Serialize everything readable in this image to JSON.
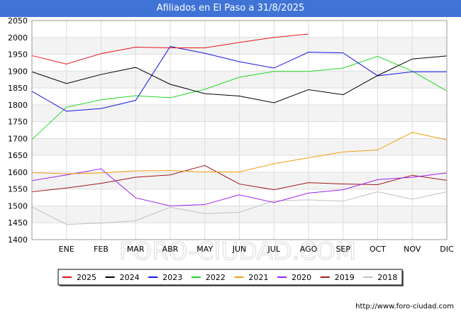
{
  "title": "Afiliados en El Paso a 31/8/2025",
  "source": "http://www.foro-ciudad.com",
  "watermark": "FORO-CIUDAD.COM",
  "chart_data": {
    "type": "line",
    "title": "Afiliados en El Paso a 31/8/2025",
    "xlabel": "",
    "ylabel": "",
    "categories": [
      "",
      "ENE",
      "FEB",
      "MAR",
      "ABR",
      "MAY",
      "JUN",
      "JUL",
      "AGO",
      "SEP",
      "OCT",
      "NOV",
      "DIC"
    ],
    "ylim": [
      1400,
      2050
    ],
    "yticks": [
      1400,
      1450,
      1500,
      1550,
      1600,
      1650,
      1700,
      1750,
      1800,
      1850,
      1900,
      1950,
      2000,
      2050
    ],
    "grid": true,
    "legend_position": "bottom",
    "series": [
      {
        "name": "2025",
        "color": "#e8141a",
        "values": [
          1946,
          1921,
          1952,
          1971,
          1969,
          1969,
          1985,
          2000,
          2010,
          null,
          null,
          null,
          null
        ]
      },
      {
        "name": "2024",
        "color": "#000000",
        "values": [
          1898,
          1863,
          1890,
          1911,
          1861,
          1833,
          1826,
          1806,
          1845,
          1830,
          1887,
          1936,
          1945
        ]
      },
      {
        "name": "2023",
        "color": "#1414e6",
        "values": [
          1840,
          1781,
          1789,
          1813,
          1973,
          1953,
          1928,
          1909,
          1956,
          1954,
          1886,
          1898,
          1898
        ]
      },
      {
        "name": "2022",
        "color": "#22d822",
        "values": [
          1697,
          1793,
          1815,
          1827,
          1821,
          1846,
          1882,
          1899,
          1899,
          1909,
          1944,
          1900,
          1841
        ]
      },
      {
        "name": "2021",
        "color": "#f0a010",
        "values": [
          1599,
          1595,
          1598,
          1604,
          1605,
          1601,
          1601,
          1625,
          1643,
          1660,
          1666,
          1718,
          1696
        ]
      },
      {
        "name": "2020",
        "color": "#a020f0",
        "values": [
          1575,
          1592,
          1610,
          1524,
          1500,
          1504,
          1533,
          1510,
          1538,
          1548,
          1578,
          1585,
          1598
        ]
      },
      {
        "name": "2019",
        "color": "#a01818",
        "values": [
          1542,
          1553,
          1567,
          1585,
          1592,
          1620,
          1565,
          1548,
          1569,
          1565,
          1563,
          1591,
          1576
        ]
      },
      {
        "name": "2018",
        "color": "#c0c0c0",
        "values": [
          1497,
          1445,
          1449,
          1456,
          1496,
          1477,
          1481,
          1515,
          1518,
          1514,
          1542,
          1520,
          1542
        ]
      }
    ]
  }
}
